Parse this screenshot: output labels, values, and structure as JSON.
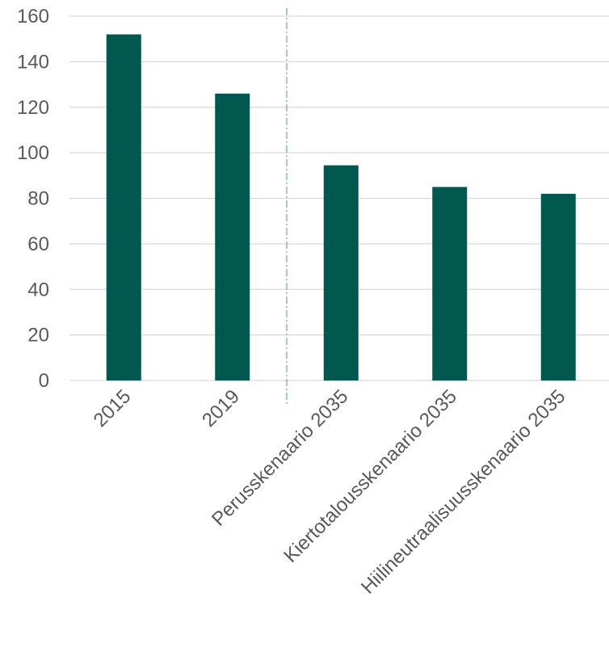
{
  "chart_data": {
    "type": "bar",
    "categories": [
      "2015",
      "2019",
      "Perusskenaario 2035",
      "Kiertotalousskenaario 2035",
      "Hiilineutraalisuusskenaario 2035"
    ],
    "values": [
      152,
      126,
      94.5,
      85,
      82
    ],
    "ylim": [
      0,
      160
    ],
    "yticks": [
      0,
      20,
      40,
      60,
      80,
      100,
      120,
      140,
      160
    ],
    "title": "",
    "xlabel": "",
    "ylabel": "",
    "grid": true,
    "legend": "none",
    "divider_after_category": 1,
    "colors": {
      "bar": "#00584f",
      "grid": "#d9d9d9",
      "divider": "#6aaa8c",
      "text": "#595959"
    }
  }
}
